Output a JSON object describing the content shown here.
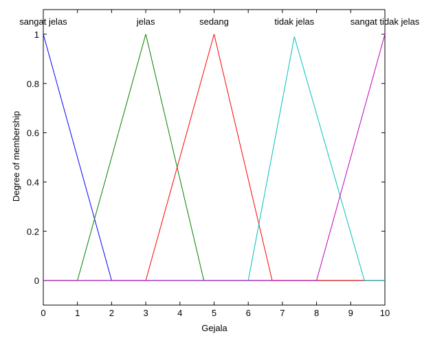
{
  "chart_data": {
    "type": "line",
    "title": "",
    "xlabel": "Gejala",
    "ylabel": "Degree of membership",
    "xlim": [
      0,
      10
    ],
    "ylim": [
      -0.1,
      1.1
    ],
    "x_ticks": [
      0,
      1,
      2,
      3,
      4,
      5,
      6,
      7,
      8,
      9,
      10
    ],
    "y_ticks": [
      0,
      0.2,
      0.4,
      0.6,
      0.8,
      1
    ],
    "x_tick_labels": [
      "0",
      "1",
      "2",
      "3",
      "4",
      "5",
      "6",
      "7",
      "8",
      "9",
      "10"
    ],
    "y_tick_labels": [
      "0",
      "0.2",
      "0.4",
      "0.6",
      "0.8",
      "1"
    ],
    "grid": false,
    "series": [
      {
        "name": "sangat jelas",
        "color": "#0000ff",
        "x": [
          0,
          2,
          10
        ],
        "y": [
          1,
          0,
          0
        ]
      },
      {
        "name": "jelas",
        "color": "#008000",
        "x": [
          0,
          1,
          3,
          4.7,
          10
        ],
        "y": [
          0,
          0,
          1,
          0,
          0
        ]
      },
      {
        "name": "sedang",
        "color": "#ff0000",
        "x": [
          0,
          3,
          5,
          6.7,
          10
        ],
        "y": [
          0,
          0,
          1,
          0,
          0
        ]
      },
      {
        "name": "tidak jelas",
        "color": "#00bfbf",
        "x": [
          0,
          6,
          7.35,
          9.4,
          10
        ],
        "y": [
          0,
          0,
          0.99,
          0,
          0
        ]
      },
      {
        "name": "sangat tidak jelas",
        "color": "#bf00bf",
        "x": [
          0,
          8,
          10
        ],
        "y": [
          0,
          0,
          1
        ]
      }
    ],
    "mf_labels": [
      {
        "text": "sangat jelas",
        "x": 0,
        "anchor": "middle"
      },
      {
        "text": "jelas",
        "x": 3,
        "anchor": "middle"
      },
      {
        "text": "sedang",
        "x": 5,
        "anchor": "middle"
      },
      {
        "text": "tidak jelas",
        "x": 7.35,
        "anchor": "middle"
      },
      {
        "text": "sangat tidak jelas",
        "x": 10,
        "anchor": "middle"
      }
    ]
  }
}
